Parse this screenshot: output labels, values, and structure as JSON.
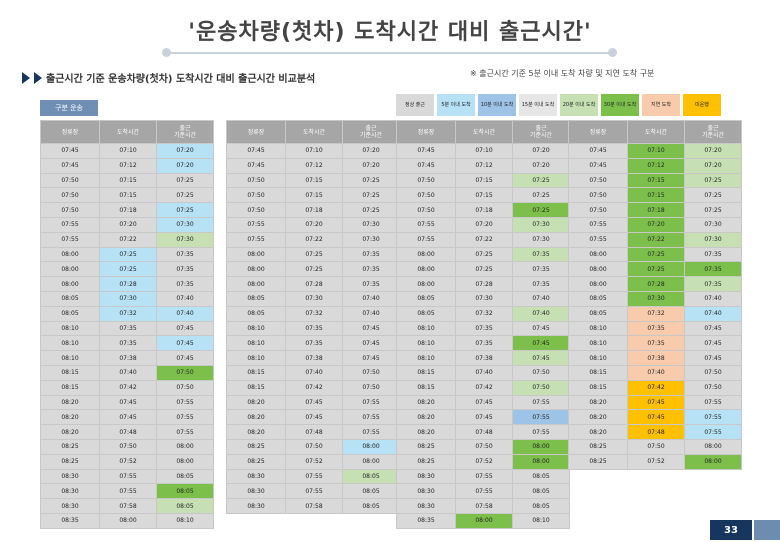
{
  "page": {
    "title": "'운송차량(첫차) 도착시간 대비 출근시간'",
    "subtitle": "출근시간 기준 운송차량(첫차) 도착시간 대비 출근시간 비교분석",
    "note": "※ 출근시간 기준 5분 이내 도착 차량 및 지연 도착 구분",
    "block_label": "구분 운송",
    "page_number": "33"
  },
  "legend": [
    {
      "label": "정상 출근",
      "color": "#d9d9d9"
    },
    {
      "label": "5분 이내 도착",
      "color": "#b7e1f5"
    },
    {
      "label": "10분 이내 도착",
      "color": "#9dc3e6"
    },
    {
      "label": "15분 이내 도착",
      "color": "#e7e6e6"
    },
    {
      "label": "20분 이내 도착",
      "color": "#c6e0b4"
    },
    {
      "label": "30분 이내 도착",
      "color": "#7cc04b"
    },
    {
      "label": "지연 도착",
      "color": "#f8cbad"
    },
    {
      "label": "미운행",
      "color": "#ffc000"
    }
  ],
  "headers": [
    "정류장",
    "도착시간",
    "출근\n기준시간"
  ],
  "tables": [
    {
      "rows": [
        [
          "07:45",
          "07:10",
          "07:20"
        ],
        [
          "07:45",
          "07:12",
          "07:20"
        ],
        [
          "07:50",
          "07:15",
          "07:25"
        ],
        [
          "07:50",
          "07:15",
          "07:25"
        ],
        [
          "07:50",
          "07:18",
          "07:25"
        ],
        [
          "07:55",
          "07:20",
          "07:30"
        ],
        [
          "07:55",
          "07:22",
          "07:30"
        ],
        [
          "08:00",
          "07:25",
          "07:35"
        ],
        [
          "08:00",
          "07:25",
          "07:35"
        ],
        [
          "08:00",
          "07:28",
          "07:35"
        ],
        [
          "08:05",
          "07:30",
          "07:40"
        ],
        [
          "08:05",
          "07:32",
          "07:40"
        ],
        [
          "08:10",
          "07:35",
          "07:45"
        ],
        [
          "08:10",
          "07:35",
          "07:45"
        ],
        [
          "08:10",
          "07:38",
          "07:45"
        ],
        [
          "08:15",
          "07:40",
          "07:50"
        ],
        [
          "08:15",
          "07:42",
          "07:50"
        ],
        [
          "08:20",
          "07:45",
          "07:55"
        ],
        [
          "08:20",
          "07:45",
          "07:55"
        ],
        [
          "08:20",
          "07:48",
          "07:55"
        ],
        [
          "08:25",
          "07:50",
          "08:00"
        ],
        [
          "08:25",
          "07:52",
          "08:00"
        ],
        [
          "08:30",
          "07:55",
          "08:05"
        ],
        [
          "08:30",
          "07:55",
          "08:05"
        ],
        [
          "08:30",
          "07:58",
          "08:05"
        ],
        [
          "08:35",
          "08:00",
          "08:10"
        ]
      ],
      "colors": [
        [
          "g",
          "g",
          "b"
        ],
        [
          "g",
          "g",
          "b"
        ],
        [
          "g",
          "g",
          "g"
        ],
        [
          "g",
          "g",
          "g"
        ],
        [
          "g",
          "g",
          "b"
        ],
        [
          "g",
          "g",
          "b"
        ],
        [
          "g",
          "g",
          "lg"
        ],
        [
          "g",
          "b",
          "g"
        ],
        [
          "g",
          "b",
          "g"
        ],
        [
          "g",
          "b",
          "g"
        ],
        [
          "g",
          "b",
          "g"
        ],
        [
          "g",
          "b",
          "b"
        ],
        [
          "g",
          "g",
          "g"
        ],
        [
          "g",
          "g",
          "b"
        ],
        [
          "g",
          "g",
          "g"
        ],
        [
          "g",
          "g",
          "dg"
        ],
        [
          "g",
          "g",
          "g"
        ],
        [
          "g",
          "g",
          "g"
        ],
        [
          "g",
          "g",
          "g"
        ],
        [
          "g",
          "g",
          "g"
        ],
        [
          "g",
          "g",
          "g"
        ],
        [
          "g",
          "g",
          "g"
        ],
        [
          "g",
          "g",
          "g"
        ],
        [
          "g",
          "g",
          "dg"
        ],
        [
          "g",
          "g",
          "lg"
        ],
        [
          "g",
          "g",
          "g"
        ]
      ]
    },
    {
      "rows": [
        [
          "07:45",
          "07:10",
          "07:20"
        ],
        [
          "07:45",
          "07:12",
          "07:20"
        ],
        [
          "07:50",
          "07:15",
          "07:25"
        ],
        [
          "07:50",
          "07:15",
          "07:25"
        ],
        [
          "07:50",
          "07:18",
          "07:25"
        ],
        [
          "07:55",
          "07:20",
          "07:30"
        ],
        [
          "07:55",
          "07:22",
          "07:30"
        ],
        [
          "08:00",
          "07:25",
          "07:35"
        ],
        [
          "08:00",
          "07:25",
          "07:35"
        ],
        [
          "08:00",
          "07:28",
          "07:35"
        ],
        [
          "08:05",
          "07:30",
          "07:40"
        ],
        [
          "08:05",
          "07:32",
          "07:40"
        ],
        [
          "08:10",
          "07:35",
          "07:45"
        ],
        [
          "08:10",
          "07:35",
          "07:45"
        ],
        [
          "08:10",
          "07:38",
          "07:45"
        ],
        [
          "08:15",
          "07:40",
          "07:50"
        ],
        [
          "08:15",
          "07:42",
          "07:50"
        ],
        [
          "08:20",
          "07:45",
          "07:55"
        ],
        [
          "08:20",
          "07:45",
          "07:55"
        ],
        [
          "08:20",
          "07:48",
          "07:55"
        ],
        [
          "08:25",
          "07:50",
          "08:00"
        ],
        [
          "08:25",
          "07:52",
          "08:00"
        ],
        [
          "08:30",
          "07:55",
          "08:05"
        ],
        [
          "08:30",
          "07:55",
          "08:05"
        ],
        [
          "08:30",
          "07:58",
          "08:05"
        ]
      ],
      "colors": [
        [
          "g",
          "g",
          "g"
        ],
        [
          "g",
          "g",
          "g"
        ],
        [
          "g",
          "g",
          "g"
        ],
        [
          "g",
          "g",
          "g"
        ],
        [
          "g",
          "g",
          "g"
        ],
        [
          "g",
          "g",
          "g"
        ],
        [
          "g",
          "g",
          "g"
        ],
        [
          "g",
          "g",
          "g"
        ],
        [
          "g",
          "g",
          "g"
        ],
        [
          "g",
          "g",
          "g"
        ],
        [
          "g",
          "g",
          "g"
        ],
        [
          "g",
          "g",
          "g"
        ],
        [
          "g",
          "g",
          "g"
        ],
        [
          "g",
          "g",
          "g"
        ],
        [
          "g",
          "g",
          "g"
        ],
        [
          "g",
          "g",
          "g"
        ],
        [
          "g",
          "g",
          "g"
        ],
        [
          "g",
          "g",
          "g"
        ],
        [
          "g",
          "g",
          "g"
        ],
        [
          "g",
          "g",
          "g"
        ],
        [
          "g",
          "g",
          "b"
        ],
        [
          "g",
          "g",
          "g"
        ],
        [
          "g",
          "g",
          "lg"
        ],
        [
          "g",
          "g",
          "g"
        ],
        [
          "g",
          "g",
          "g"
        ]
      ]
    },
    {
      "rows": [
        [
          "07:45",
          "07:10",
          "07:20"
        ],
        [
          "07:45",
          "07:12",
          "07:20"
        ],
        [
          "07:50",
          "07:15",
          "07:25"
        ],
        [
          "07:50",
          "07:15",
          "07:25"
        ],
        [
          "07:50",
          "07:18",
          "07:25"
        ],
        [
          "07:55",
          "07:20",
          "07:30"
        ],
        [
          "07:55",
          "07:22",
          "07:30"
        ],
        [
          "08:00",
          "07:25",
          "07:35"
        ],
        [
          "08:00",
          "07:25",
          "07:35"
        ],
        [
          "08:00",
          "07:28",
          "07:35"
        ],
        [
          "08:05",
          "07:30",
          "07:40"
        ],
        [
          "08:05",
          "07:32",
          "07:40"
        ],
        [
          "08:10",
          "07:35",
          "07:45"
        ],
        [
          "08:10",
          "07:35",
          "07:45"
        ],
        [
          "08:10",
          "07:38",
          "07:45"
        ],
        [
          "08:15",
          "07:40",
          "07:50"
        ],
        [
          "08:15",
          "07:42",
          "07:50"
        ],
        [
          "08:20",
          "07:45",
          "07:55"
        ],
        [
          "08:20",
          "07:45",
          "07:55"
        ],
        [
          "08:20",
          "07:48",
          "07:55"
        ],
        [
          "08:25",
          "07:50",
          "08:00"
        ],
        [
          "08:25",
          "07:52",
          "08:00"
        ],
        [
          "08:30",
          "07:55",
          "08:05"
        ],
        [
          "08:30",
          "07:55",
          "08:05"
        ],
        [
          "08:30",
          "07:58",
          "08:05"
        ],
        [
          "08:35",
          "08:00",
          "08:10"
        ]
      ],
      "colors": [
        [
          "g",
          "g",
          "g"
        ],
        [
          "g",
          "g",
          "g"
        ],
        [
          "g",
          "g",
          "lg"
        ],
        [
          "g",
          "g",
          "g"
        ],
        [
          "g",
          "g",
          "dg"
        ],
        [
          "g",
          "g",
          "lg"
        ],
        [
          "g",
          "g",
          "g"
        ],
        [
          "g",
          "g",
          "lg"
        ],
        [
          "g",
          "g",
          "g"
        ],
        [
          "g",
          "g",
          "g"
        ],
        [
          "g",
          "g",
          "g"
        ],
        [
          "g",
          "g",
          "lg"
        ],
        [
          "g",
          "g",
          "g"
        ],
        [
          "g",
          "g",
          "dg"
        ],
        [
          "g",
          "g",
          "lg"
        ],
        [
          "g",
          "g",
          "g"
        ],
        [
          "g",
          "g",
          "lg"
        ],
        [
          "g",
          "g",
          "g"
        ],
        [
          "g",
          "g",
          "bl"
        ],
        [
          "g",
          "g",
          "g"
        ],
        [
          "g",
          "g",
          "dg"
        ],
        [
          "g",
          "g",
          "dg"
        ],
        [
          "g",
          "g",
          "g"
        ],
        [
          "g",
          "g",
          "g"
        ],
        [
          "g",
          "g",
          "g"
        ],
        [
          "g",
          "dg",
          "g"
        ]
      ]
    },
    {
      "rows": [
        [
          "07:45",
          "07:10",
          "07:20"
        ],
        [
          "07:45",
          "07:12",
          "07:20"
        ],
        [
          "07:50",
          "07:15",
          "07:25"
        ],
        [
          "07:50",
          "07:15",
          "07:25"
        ],
        [
          "07:50",
          "07:18",
          "07:25"
        ],
        [
          "07:55",
          "07:20",
          "07:30"
        ],
        [
          "07:55",
          "07:22",
          "07:30"
        ],
        [
          "08:00",
          "07:25",
          "07:35"
        ],
        [
          "08:00",
          "07:25",
          "07:35"
        ],
        [
          "08:00",
          "07:28",
          "07:35"
        ],
        [
          "08:05",
          "07:30",
          "07:40"
        ],
        [
          "08:05",
          "07:32",
          "07:40"
        ],
        [
          "08:10",
          "07:35",
          "07:45"
        ],
        [
          "08:10",
          "07:35",
          "07:45"
        ],
        [
          "08:10",
          "07:38",
          "07:45"
        ],
        [
          "08:15",
          "07:40",
          "07:50"
        ],
        [
          "08:15",
          "07:42",
          "07:50"
        ],
        [
          "08:20",
          "07:45",
          "07:55"
        ],
        [
          "08:20",
          "07:45",
          "07:55"
        ],
        [
          "08:20",
          "07:48",
          "07:55"
        ],
        [
          "08:25",
          "07:50",
          "08:00"
        ],
        [
          "08:25",
          "07:52",
          "08:00"
        ]
      ],
      "colors": [
        [
          "g",
          "dg",
          "lg"
        ],
        [
          "g",
          "dg",
          "lg"
        ],
        [
          "g",
          "dg",
          "lg"
        ],
        [
          "g",
          "dg",
          "g"
        ],
        [
          "g",
          "dg",
          "g"
        ],
        [
          "g",
          "dg",
          "g"
        ],
        [
          "g",
          "dg",
          "lg"
        ],
        [
          "g",
          "dg",
          "g"
        ],
        [
          "g",
          "dg",
          "dg"
        ],
        [
          "g",
          "dg",
          "lg"
        ],
        [
          "g",
          "dg",
          "g"
        ],
        [
          "g",
          "pk",
          "b"
        ],
        [
          "g",
          "pk",
          "g"
        ],
        [
          "g",
          "pk",
          "g"
        ],
        [
          "g",
          "pk",
          "g"
        ],
        [
          "g",
          "pk",
          "g"
        ],
        [
          "g",
          "or",
          "g"
        ],
        [
          "g",
          "or",
          "g"
        ],
        [
          "g",
          "or",
          "b"
        ],
        [
          "g",
          "or",
          "b"
        ],
        [
          "g",
          "g",
          "g"
        ],
        [
          "g",
          "g",
          "dg"
        ]
      ]
    }
  ]
}
